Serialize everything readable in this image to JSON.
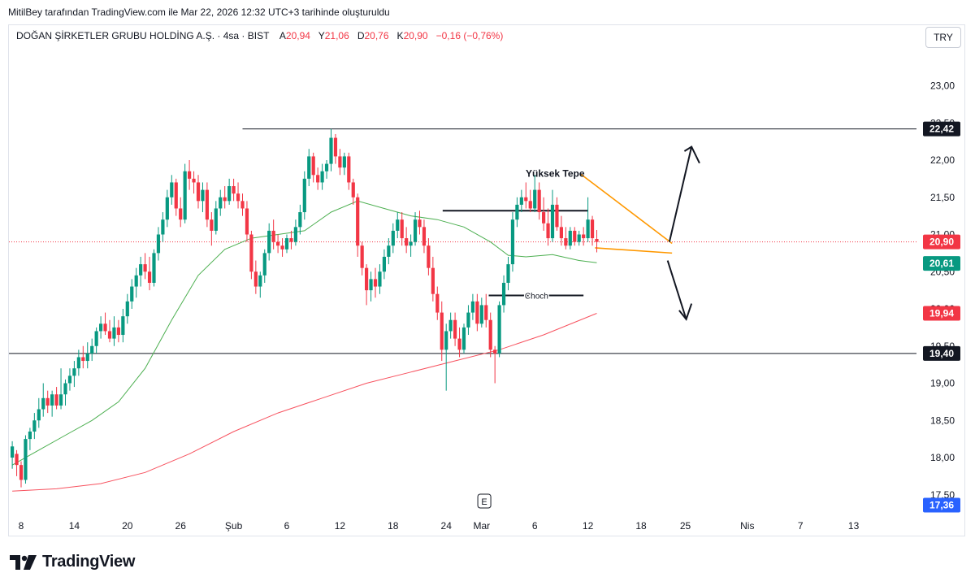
{
  "header": {
    "credit": "MitilBey tarafından TradingView.com ile Mar 22, 2026 12:32 UTC+3 tarihinde oluşturuldu",
    "symbol": "DOĞAN ŞİRKETLER GRUBU HOLDİNG A.Ş. · 4sa · BIST",
    "ohlc": [
      {
        "label": "A",
        "value": "20,94"
      },
      {
        "label": "Y",
        "value": "21,06"
      },
      {
        "label": "D",
        "value": "20,76"
      },
      {
        "label": "K",
        "value": "20,90"
      }
    ],
    "change": "−0,16 (−0,76%)",
    "currency": "TRY"
  },
  "brand": {
    "name": "TradingView"
  },
  "chart_data": {
    "type": "candlestick",
    "x_ticks": [
      {
        "label": "8",
        "day": 8
      },
      {
        "label": "14",
        "day": 14
      },
      {
        "label": "20",
        "day": 20
      },
      {
        "label": "26",
        "day": 26
      },
      {
        "label": "Şub",
        "day": 32
      },
      {
        "label": "6",
        "day": 38
      },
      {
        "label": "12",
        "day": 44
      },
      {
        "label": "18",
        "day": 50
      },
      {
        "label": "24",
        "day": 56
      },
      {
        "label": "Mar",
        "day": 60
      },
      {
        "label": "6",
        "day": 66
      },
      {
        "label": "12",
        "day": 72
      },
      {
        "label": "18",
        "day": 78
      },
      {
        "label": "25",
        "day": 83
      },
      {
        "label": "Nis",
        "day": 90
      },
      {
        "label": "7",
        "day": 96
      },
      {
        "label": "13",
        "day": 102
      }
    ],
    "y_axis": {
      "ticks": [
        17.5,
        18.0,
        18.5,
        19.0,
        19.5,
        20.0,
        20.5,
        21.0,
        21.5,
        22.0,
        22.5,
        23.0
      ],
      "tick_labels": [
        "17,50",
        "18,00",
        "18,50",
        "19,00",
        "19,50",
        "20,00",
        "20,50",
        "21,00",
        "21,50",
        "22,00",
        "22,50",
        "23,00"
      ],
      "range": [
        17.3,
        23.5
      ]
    },
    "price_badges": [
      {
        "value": 22.42,
        "label": "22,42",
        "color": "#131722"
      },
      {
        "value": 20.9,
        "label": "20,90",
        "color": "#f23645"
      },
      {
        "value": 20.61,
        "label": "20,61",
        "color": "#089981"
      },
      {
        "value": 19.94,
        "label": "19,94",
        "color": "#f23645"
      },
      {
        "value": 19.4,
        "label": "19,40",
        "color": "#131722"
      },
      {
        "value": 17.36,
        "label": "17,36",
        "color": "#2962ff"
      }
    ],
    "candles": [
      {
        "d": 7.0,
        "o": 18.0,
        "h": 18.22,
        "l": 17.85,
        "c": 18.15
      },
      {
        "d": 7.5,
        "o": 18.05,
        "h": 18.1,
        "l": 17.75,
        "c": 17.9
      },
      {
        "d": 8.0,
        "o": 17.9,
        "h": 17.95,
        "l": 17.6,
        "c": 17.7
      },
      {
        "d": 8.5,
        "o": 17.7,
        "h": 18.3,
        "l": 17.65,
        "c": 18.25
      },
      {
        "d": 9.0,
        "o": 18.25,
        "h": 18.4,
        "l": 18.1,
        "c": 18.35
      },
      {
        "d": 9.5,
        "o": 18.35,
        "h": 18.6,
        "l": 18.25,
        "c": 18.5
      },
      {
        "d": 10.0,
        "o": 18.5,
        "h": 18.8,
        "l": 18.4,
        "c": 18.65
      },
      {
        "d": 10.5,
        "o": 18.65,
        "h": 19.0,
        "l": 18.55,
        "c": 18.8
      },
      {
        "d": 11.0,
        "o": 18.8,
        "h": 18.9,
        "l": 18.6,
        "c": 18.7
      },
      {
        "d": 11.5,
        "o": 18.7,
        "h": 18.9,
        "l": 18.55,
        "c": 18.85
      },
      {
        "d": 12.0,
        "o": 18.85,
        "h": 18.95,
        "l": 18.65,
        "c": 18.7
      },
      {
        "d": 12.5,
        "o": 18.7,
        "h": 19.2,
        "l": 18.65,
        "c": 18.85
      },
      {
        "d": 13.0,
        "o": 18.85,
        "h": 19.05,
        "l": 18.7,
        "c": 19.0
      },
      {
        "d": 13.5,
        "o": 19.0,
        "h": 19.2,
        "l": 18.9,
        "c": 19.1
      },
      {
        "d": 14.0,
        "o": 19.1,
        "h": 19.3,
        "l": 18.95,
        "c": 19.2
      },
      {
        "d": 14.5,
        "o": 19.2,
        "h": 19.45,
        "l": 19.1,
        "c": 19.35
      },
      {
        "d": 15.0,
        "o": 19.35,
        "h": 19.5,
        "l": 19.2,
        "c": 19.3
      },
      {
        "d": 15.5,
        "o": 19.3,
        "h": 19.55,
        "l": 19.2,
        "c": 19.4
      },
      {
        "d": 16.0,
        "o": 19.4,
        "h": 19.6,
        "l": 19.3,
        "c": 19.5
      },
      {
        "d": 16.5,
        "o": 19.5,
        "h": 19.75,
        "l": 19.4,
        "c": 19.7
      },
      {
        "d": 17.0,
        "o": 19.7,
        "h": 19.9,
        "l": 19.6,
        "c": 19.8
      },
      {
        "d": 17.5,
        "o": 19.8,
        "h": 19.95,
        "l": 19.65,
        "c": 19.7
      },
      {
        "d": 18.0,
        "o": 19.7,
        "h": 19.85,
        "l": 19.55,
        "c": 19.6
      },
      {
        "d": 18.5,
        "o": 19.6,
        "h": 19.9,
        "l": 19.5,
        "c": 19.75
      },
      {
        "d": 19.0,
        "o": 19.75,
        "h": 19.85,
        "l": 19.55,
        "c": 19.65
      },
      {
        "d": 19.5,
        "o": 19.65,
        "h": 20.0,
        "l": 19.55,
        "c": 19.9
      },
      {
        "d": 20.0,
        "o": 19.9,
        "h": 20.2,
        "l": 19.8,
        "c": 20.1
      },
      {
        "d": 20.5,
        "o": 20.1,
        "h": 20.4,
        "l": 20.0,
        "c": 20.3
      },
      {
        "d": 21.0,
        "o": 20.3,
        "h": 20.55,
        "l": 20.15,
        "c": 20.45
      },
      {
        "d": 21.5,
        "o": 20.45,
        "h": 20.7,
        "l": 20.3,
        "c": 20.6
      },
      {
        "d": 22.0,
        "o": 20.6,
        "h": 20.75,
        "l": 20.4,
        "c": 20.5
      },
      {
        "d": 22.5,
        "o": 20.5,
        "h": 20.7,
        "l": 20.25,
        "c": 20.35
      },
      {
        "d": 23.0,
        "o": 20.35,
        "h": 20.8,
        "l": 20.3,
        "c": 20.75
      },
      {
        "d": 23.5,
        "o": 20.75,
        "h": 21.1,
        "l": 20.65,
        "c": 21.0
      },
      {
        "d": 24.0,
        "o": 21.0,
        "h": 21.3,
        "l": 20.9,
        "c": 21.2
      },
      {
        "d": 24.5,
        "o": 21.2,
        "h": 21.6,
        "l": 21.1,
        "c": 21.5
      },
      {
        "d": 25.0,
        "o": 21.5,
        "h": 21.8,
        "l": 21.4,
        "c": 21.7
      },
      {
        "d": 25.5,
        "o": 21.7,
        "h": 21.75,
        "l": 21.25,
        "c": 21.35
      },
      {
        "d": 26.0,
        "o": 21.35,
        "h": 21.5,
        "l": 21.1,
        "c": 21.2
      },
      {
        "d": 26.5,
        "o": 21.2,
        "h": 21.95,
        "l": 21.15,
        "c": 21.85
      },
      {
        "d": 27.0,
        "o": 21.85,
        "h": 22.0,
        "l": 21.6,
        "c": 21.75
      },
      {
        "d": 27.5,
        "o": 21.75,
        "h": 21.85,
        "l": 21.55,
        "c": 21.7
      },
      {
        "d": 28.0,
        "o": 21.7,
        "h": 21.8,
        "l": 21.35,
        "c": 21.45
      },
      {
        "d": 28.5,
        "o": 21.45,
        "h": 21.7,
        "l": 21.3,
        "c": 21.6
      },
      {
        "d": 29.0,
        "o": 21.6,
        "h": 21.7,
        "l": 21.1,
        "c": 21.2
      },
      {
        "d": 29.5,
        "o": 21.2,
        "h": 21.3,
        "l": 20.85,
        "c": 21.05
      },
      {
        "d": 30.0,
        "o": 21.05,
        "h": 21.45,
        "l": 21.0,
        "c": 21.35
      },
      {
        "d": 30.5,
        "o": 21.35,
        "h": 21.6,
        "l": 21.25,
        "c": 21.5
      },
      {
        "d": 31.0,
        "o": 21.5,
        "h": 21.65,
        "l": 21.35,
        "c": 21.45
      },
      {
        "d": 31.5,
        "o": 21.45,
        "h": 21.75,
        "l": 21.4,
        "c": 21.65
      },
      {
        "d": 32.0,
        "o": 21.65,
        "h": 21.75,
        "l": 21.45,
        "c": 21.55
      },
      {
        "d": 32.5,
        "o": 21.55,
        "h": 21.7,
        "l": 21.35,
        "c": 21.45
      },
      {
        "d": 33.0,
        "o": 21.45,
        "h": 21.55,
        "l": 21.25,
        "c": 21.35
      },
      {
        "d": 33.5,
        "o": 21.35,
        "h": 21.45,
        "l": 20.9,
        "c": 21.0
      },
      {
        "d": 34.0,
        "o": 21.0,
        "h": 21.05,
        "l": 20.4,
        "c": 20.5
      },
      {
        "d": 34.5,
        "o": 20.5,
        "h": 20.65,
        "l": 20.2,
        "c": 20.3
      },
      {
        "d": 35.0,
        "o": 20.3,
        "h": 20.5,
        "l": 20.15,
        "c": 20.45
      },
      {
        "d": 35.5,
        "o": 20.45,
        "h": 20.8,
        "l": 20.35,
        "c": 20.75
      },
      {
        "d": 36.0,
        "o": 20.75,
        "h": 21.15,
        "l": 20.65,
        "c": 21.05
      },
      {
        "d": 36.5,
        "o": 21.05,
        "h": 21.2,
        "l": 20.8,
        "c": 20.9
      },
      {
        "d": 37.0,
        "o": 20.9,
        "h": 21.0,
        "l": 20.75,
        "c": 20.85
      },
      {
        "d": 37.5,
        "o": 20.85,
        "h": 20.95,
        "l": 20.7,
        "c": 20.8
      },
      {
        "d": 38.0,
        "o": 20.8,
        "h": 21.0,
        "l": 20.75,
        "c": 20.95
      },
      {
        "d": 38.5,
        "o": 20.95,
        "h": 21.05,
        "l": 20.8,
        "c": 20.9
      },
      {
        "d": 39.0,
        "o": 20.9,
        "h": 21.2,
        "l": 20.85,
        "c": 21.1
      },
      {
        "d": 39.5,
        "o": 21.1,
        "h": 21.4,
        "l": 21.0,
        "c": 21.3
      },
      {
        "d": 40.0,
        "o": 21.3,
        "h": 21.85,
        "l": 21.2,
        "c": 21.75
      },
      {
        "d": 40.5,
        "o": 21.75,
        "h": 22.15,
        "l": 21.65,
        "c": 22.05
      },
      {
        "d": 41.0,
        "o": 22.05,
        "h": 22.1,
        "l": 21.7,
        "c": 21.8
      },
      {
        "d": 41.5,
        "o": 21.8,
        "h": 21.9,
        "l": 21.6,
        "c": 21.7
      },
      {
        "d": 42.0,
        "o": 21.7,
        "h": 21.95,
        "l": 21.6,
        "c": 21.85
      },
      {
        "d": 42.5,
        "o": 21.85,
        "h": 22.0,
        "l": 21.75,
        "c": 21.95
      },
      {
        "d": 43.0,
        "o": 21.95,
        "h": 22.42,
        "l": 21.85,
        "c": 22.3
      },
      {
        "d": 43.5,
        "o": 22.3,
        "h": 22.35,
        "l": 21.95,
        "c": 22.05
      },
      {
        "d": 44.0,
        "o": 22.05,
        "h": 22.15,
        "l": 21.8,
        "c": 21.9
      },
      {
        "d": 44.5,
        "o": 21.9,
        "h": 22.1,
        "l": 21.8,
        "c": 22.05
      },
      {
        "d": 45.0,
        "o": 22.05,
        "h": 22.1,
        "l": 21.6,
        "c": 21.7
      },
      {
        "d": 45.5,
        "o": 21.7,
        "h": 21.75,
        "l": 21.4,
        "c": 21.5
      },
      {
        "d": 46.0,
        "o": 21.5,
        "h": 21.55,
        "l": 20.7,
        "c": 20.85
      },
      {
        "d": 46.5,
        "o": 20.85,
        "h": 20.9,
        "l": 20.45,
        "c": 20.55
      },
      {
        "d": 47.0,
        "o": 20.55,
        "h": 20.6,
        "l": 20.05,
        "c": 20.25
      },
      {
        "d": 47.5,
        "o": 20.25,
        "h": 20.5,
        "l": 20.1,
        "c": 20.4
      },
      {
        "d": 48.0,
        "o": 20.4,
        "h": 20.55,
        "l": 20.15,
        "c": 20.3
      },
      {
        "d": 48.5,
        "o": 20.3,
        "h": 20.6,
        "l": 20.2,
        "c": 20.5
      },
      {
        "d": 49.0,
        "o": 20.5,
        "h": 20.8,
        "l": 20.4,
        "c": 20.7
      },
      {
        "d": 49.5,
        "o": 20.7,
        "h": 20.95,
        "l": 20.6,
        "c": 20.85
      },
      {
        "d": 50.0,
        "o": 20.85,
        "h": 21.15,
        "l": 20.75,
        "c": 21.05
      },
      {
        "d": 50.5,
        "o": 21.05,
        "h": 21.3,
        "l": 20.95,
        "c": 21.2
      },
      {
        "d": 51.0,
        "o": 21.2,
        "h": 21.3,
        "l": 20.85,
        "c": 20.95
      },
      {
        "d": 51.5,
        "o": 20.95,
        "h": 21.1,
        "l": 20.75,
        "c": 20.85
      },
      {
        "d": 52.0,
        "o": 20.85,
        "h": 21.0,
        "l": 20.7,
        "c": 20.9
      },
      {
        "d": 52.5,
        "o": 20.9,
        "h": 21.3,
        "l": 20.85,
        "c": 21.2
      },
      {
        "d": 53.0,
        "o": 21.2,
        "h": 21.32,
        "l": 21.0,
        "c": 21.1
      },
      {
        "d": 53.5,
        "o": 21.1,
        "h": 21.2,
        "l": 20.75,
        "c": 20.85
      },
      {
        "d": 54.0,
        "o": 20.85,
        "h": 20.95,
        "l": 20.45,
        "c": 20.55
      },
      {
        "d": 54.5,
        "o": 20.55,
        "h": 20.7,
        "l": 20.1,
        "c": 20.2
      },
      {
        "d": 55.0,
        "o": 20.2,
        "h": 20.3,
        "l": 19.85,
        "c": 19.95
      },
      {
        "d": 55.5,
        "o": 19.95,
        "h": 20.1,
        "l": 19.3,
        "c": 19.45
      },
      {
        "d": 56.0,
        "o": 19.45,
        "h": 19.8,
        "l": 18.9,
        "c": 19.7
      },
      {
        "d": 56.5,
        "o": 19.7,
        "h": 19.95,
        "l": 19.6,
        "c": 19.85
      },
      {
        "d": 57.0,
        "o": 19.85,
        "h": 19.95,
        "l": 19.5,
        "c": 19.6
      },
      {
        "d": 57.5,
        "o": 19.6,
        "h": 19.75,
        "l": 19.35,
        "c": 19.45
      },
      {
        "d": 58.0,
        "o": 19.45,
        "h": 19.8,
        "l": 19.4,
        "c": 19.75
      },
      {
        "d": 58.5,
        "o": 19.75,
        "h": 20.05,
        "l": 19.65,
        "c": 19.95
      },
      {
        "d": 59.0,
        "o": 19.95,
        "h": 20.2,
        "l": 19.85,
        "c": 20.1
      },
      {
        "d": 59.5,
        "o": 20.1,
        "h": 20.2,
        "l": 19.7,
        "c": 19.8
      },
      {
        "d": 60.0,
        "o": 19.8,
        "h": 20.15,
        "l": 19.75,
        "c": 20.05
      },
      {
        "d": 60.5,
        "o": 20.05,
        "h": 20.2,
        "l": 19.75,
        "c": 19.85
      },
      {
        "d": 61.0,
        "o": 19.85,
        "h": 19.95,
        "l": 19.35,
        "c": 19.45
      },
      {
        "d": 61.5,
        "o": 19.45,
        "h": 19.5,
        "l": 19.0,
        "c": 19.4
      },
      {
        "d": 62.0,
        "o": 19.4,
        "h": 20.1,
        "l": 19.35,
        "c": 20.05
      },
      {
        "d": 62.5,
        "o": 20.05,
        "h": 20.45,
        "l": 19.95,
        "c": 20.35
      },
      {
        "d": 63.0,
        "o": 20.35,
        "h": 20.7,
        "l": 20.25,
        "c": 20.6
      },
      {
        "d": 63.5,
        "o": 20.6,
        "h": 21.3,
        "l": 20.5,
        "c": 21.2
      },
      {
        "d": 64.0,
        "o": 21.2,
        "h": 21.5,
        "l": 21.1,
        "c": 21.4
      },
      {
        "d": 64.5,
        "o": 21.4,
        "h": 21.6,
        "l": 21.3,
        "c": 21.5
      },
      {
        "d": 65.0,
        "o": 21.5,
        "h": 21.7,
        "l": 21.35,
        "c": 21.45
      },
      {
        "d": 65.5,
        "o": 21.45,
        "h": 21.6,
        "l": 21.3,
        "c": 21.35
      },
      {
        "d": 66.0,
        "o": 21.35,
        "h": 21.8,
        "l": 21.3,
        "c": 21.6
      },
      {
        "d": 66.5,
        "o": 21.6,
        "h": 21.7,
        "l": 21.2,
        "c": 21.3
      },
      {
        "d": 67.0,
        "o": 21.3,
        "h": 21.5,
        "l": 21.05,
        "c": 21.15
      },
      {
        "d": 67.5,
        "o": 21.15,
        "h": 21.35,
        "l": 20.85,
        "c": 20.95
      },
      {
        "d": 68.0,
        "o": 20.95,
        "h": 21.6,
        "l": 20.9,
        "c": 21.4
      },
      {
        "d": 68.5,
        "o": 21.4,
        "h": 21.5,
        "l": 21.05,
        "c": 21.1
      },
      {
        "d": 69.0,
        "o": 21.1,
        "h": 21.25,
        "l": 20.85,
        "c": 20.95
      },
      {
        "d": 69.5,
        "o": 20.95,
        "h": 21.1,
        "l": 20.8,
        "c": 20.85
      },
      {
        "d": 70.0,
        "o": 20.85,
        "h": 21.1,
        "l": 20.8,
        "c": 21.05
      },
      {
        "d": 70.5,
        "o": 21.05,
        "h": 21.1,
        "l": 20.85,
        "c": 20.9
      },
      {
        "d": 71.0,
        "o": 20.9,
        "h": 21.05,
        "l": 20.85,
        "c": 21.0
      },
      {
        "d": 71.5,
        "o": 21.0,
        "h": 21.1,
        "l": 20.85,
        "c": 20.95
      },
      {
        "d": 72.0,
        "o": 20.95,
        "h": 21.5,
        "l": 20.9,
        "c": 21.2
      },
      {
        "d": 72.5,
        "o": 21.2,
        "h": 21.25,
        "l": 20.85,
        "c": 20.95
      },
      {
        "d": 73.0,
        "o": 20.94,
        "h": 21.06,
        "l": 20.76,
        "c": 20.9
      }
    ],
    "sma_green": [
      {
        "d": 7,
        "v": 17.9
      },
      {
        "d": 10,
        "v": 18.1
      },
      {
        "d": 13,
        "v": 18.3
      },
      {
        "d": 16,
        "v": 18.5
      },
      {
        "d": 19,
        "v": 18.75
      },
      {
        "d": 22,
        "v": 19.2
      },
      {
        "d": 25,
        "v": 19.85
      },
      {
        "d": 28,
        "v": 20.45
      },
      {
        "d": 31,
        "v": 20.8
      },
      {
        "d": 34,
        "v": 20.95
      },
      {
        "d": 37,
        "v": 21.0
      },
      {
        "d": 40,
        "v": 21.05
      },
      {
        "d": 43,
        "v": 21.3
      },
      {
        "d": 46,
        "v": 21.45
      },
      {
        "d": 49,
        "v": 21.35
      },
      {
        "d": 52,
        "v": 21.25
      },
      {
        "d": 55,
        "v": 21.2
      },
      {
        "d": 58,
        "v": 21.1
      },
      {
        "d": 61,
        "v": 20.9
      },
      {
        "d": 63,
        "v": 20.72
      },
      {
        "d": 65,
        "v": 20.7
      },
      {
        "d": 68,
        "v": 20.73
      },
      {
        "d": 71,
        "v": 20.65
      },
      {
        "d": 73,
        "v": 20.62
      }
    ],
    "sma_red": [
      {
        "d": 7,
        "v": 17.55
      },
      {
        "d": 12,
        "v": 17.58
      },
      {
        "d": 17,
        "v": 17.65
      },
      {
        "d": 22,
        "v": 17.8
      },
      {
        "d": 27,
        "v": 18.05
      },
      {
        "d": 32,
        "v": 18.35
      },
      {
        "d": 37,
        "v": 18.6
      },
      {
        "d": 42,
        "v": 18.8
      },
      {
        "d": 47,
        "v": 19.0
      },
      {
        "d": 52,
        "v": 19.15
      },
      {
        "d": 57,
        "v": 19.3
      },
      {
        "d": 62,
        "v": 19.45
      },
      {
        "d": 67,
        "v": 19.65
      },
      {
        "d": 73,
        "v": 19.94
      }
    ],
    "annotations": {
      "high_label": "Yüksek Tepe",
      "choch_label": "Choch",
      "earnings_label": "E",
      "resistance": 22.42,
      "support": 19.4,
      "current": 20.9
    }
  }
}
